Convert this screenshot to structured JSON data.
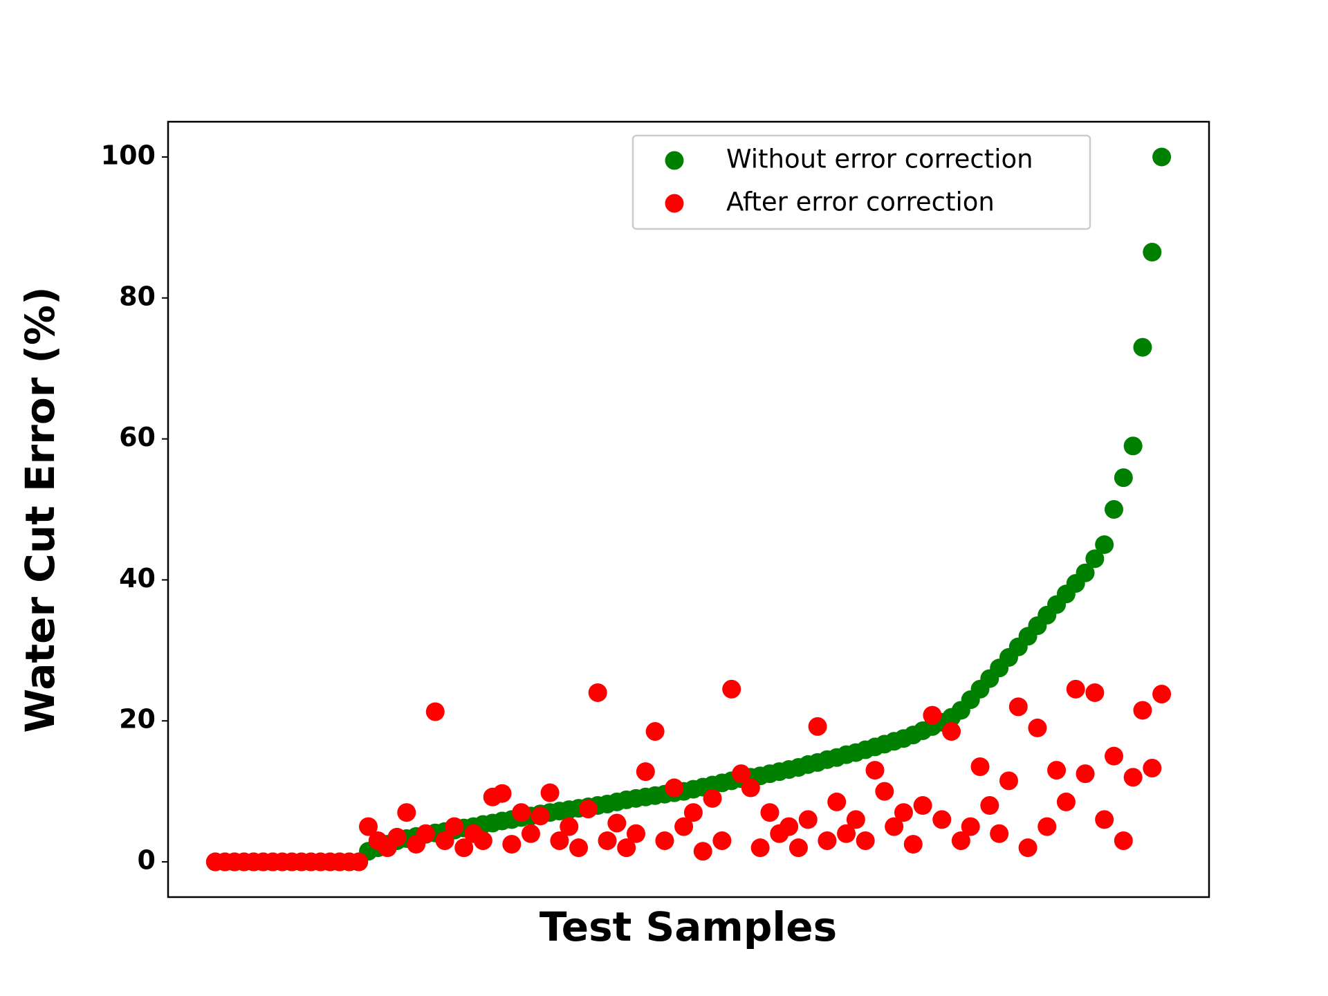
{
  "chart_data": {
    "type": "scatter",
    "xlabel": "Test Samples",
    "ylabel": "Water Cut Error (%)",
    "x": [
      0,
      1,
      2,
      3,
      4,
      5,
      6,
      7,
      8,
      9,
      10,
      11,
      12,
      13,
      14,
      15,
      16,
      17,
      18,
      19,
      20,
      21,
      22,
      23,
      24,
      25,
      26,
      27,
      28,
      29,
      30,
      31,
      32,
      33,
      34,
      35,
      36,
      37,
      38,
      39,
      40,
      41,
      42,
      43,
      44,
      45,
      46,
      47,
      48,
      49,
      50,
      51,
      52,
      53,
      54,
      55,
      56,
      57,
      58,
      59,
      60,
      61,
      62,
      63,
      64,
      65,
      66,
      67,
      68,
      69,
      70,
      71,
      72,
      73,
      74,
      75,
      76,
      77,
      78,
      79,
      80,
      81,
      82,
      83,
      84,
      85,
      86,
      87,
      88,
      89,
      90,
      91,
      92,
      93,
      94,
      95,
      96,
      97,
      98,
      99
    ],
    "xlim": [
      -4.95,
      103.95
    ],
    "ylim": [
      -5,
      105
    ],
    "yticks": [
      0,
      20,
      40,
      60,
      80,
      100
    ],
    "legend": "upper right",
    "series": [
      {
        "name": "Without error correction",
        "color": "#008000",
        "values": [
          0,
          0,
          0,
          0,
          0,
          0,
          0,
          0,
          0,
          0,
          0,
          0,
          0,
          0,
          0,
          0,
          1.5,
          2,
          2.5,
          3,
          3.3,
          3.6,
          3.9,
          4.1,
          4.3,
          4.5,
          4.8,
          5,
          5.3,
          5.5,
          5.8,
          6,
          6.3,
          6.5,
          6.8,
          7,
          7.2,
          7.4,
          7.6,
          7.8,
          8,
          8.2,
          8.5,
          8.8,
          9,
          9.2,
          9.4,
          9.6,
          9.8,
          10,
          10.3,
          10.6,
          10.9,
          11.2,
          11.5,
          11.8,
          12,
          12.2,
          12.5,
          12.8,
          13.1,
          13.4,
          13.8,
          14.1,
          14.5,
          14.8,
          15.2,
          15.5,
          15.9,
          16.3,
          16.7,
          17.1,
          17.5,
          18,
          18.6,
          19.2,
          19.8,
          20.5,
          21.5,
          23,
          24.5,
          26,
          27.5,
          29,
          30.5,
          32,
          33.5,
          35,
          36.5,
          38,
          39.5,
          41,
          43,
          45,
          50,
          54.5,
          59,
          73,
          86.5,
          100
        ]
      },
      {
        "name": "After error correction",
        "color": "#ff0000",
        "values": [
          0,
          0,
          0,
          0,
          0,
          0,
          0,
          0,
          0,
          0,
          0,
          0,
          0,
          0,
          0,
          0,
          5,
          3,
          2,
          3.5,
          7,
          2.5,
          4,
          21.3,
          3,
          5,
          2,
          4,
          3,
          9.2,
          9.7,
          2.5,
          7,
          4,
          6.5,
          9.8,
          3,
          5,
          2,
          7.5,
          24,
          3,
          5.5,
          2,
          4,
          12.8,
          18.5,
          3,
          10.5,
          5,
          7,
          1.5,
          9,
          3,
          24.5,
          12.5,
          10.5,
          2,
          7,
          4,
          5,
          2,
          6,
          19.2,
          3,
          8.5,
          4,
          6,
          3,
          13,
          10,
          5,
          7,
          2.5,
          8,
          20.8,
          6,
          18.5,
          3,
          5,
          13.5,
          8,
          4,
          11.5,
          22,
          2,
          19,
          5,
          13,
          8.5,
          24.5,
          12.5,
          24,
          6,
          15,
          3,
          12,
          21.5,
          13.3,
          23.8
        ]
      }
    ]
  }
}
